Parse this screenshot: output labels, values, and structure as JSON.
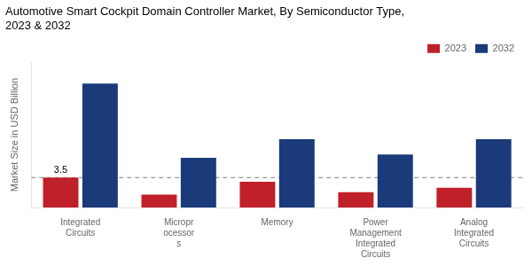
{
  "chart_data": {
    "type": "bar",
    "title": "Automotive Smart Cockpit Domain Controller Market, By Semiconductor Type,\n2023 & 2032",
    "ylabel": "Market Size in USD Billion",
    "categories": [
      "Integrated\nCircuits",
      "Micropr\nocessor\ns",
      "Memory",
      "Power\nManagement\nIntegrated\nCircuits",
      "Analog\nIntegrated\nCircuits"
    ],
    "series": [
      {
        "name": "2023",
        "color": "#c0202a",
        "values": [
          3.5,
          1.5,
          3.0,
          1.8,
          2.3
        ]
      },
      {
        "name": "2032",
        "color": "#1a3a7a",
        "values": [
          14.5,
          5.8,
          8.0,
          6.2,
          8.0
        ]
      }
    ],
    "ylim": [
      0,
      17
    ],
    "yticks": [],
    "grid": false,
    "legend": "upper right",
    "tick_labels": "x",
    "annotations": [
      {
        "text": "3.5",
        "series": "2023",
        "category": "Integrated\nCircuits",
        "y": 3.5
      }
    ],
    "hline": {
      "y": 3.5,
      "color": "#808080",
      "line_style": "dashed"
    }
  }
}
